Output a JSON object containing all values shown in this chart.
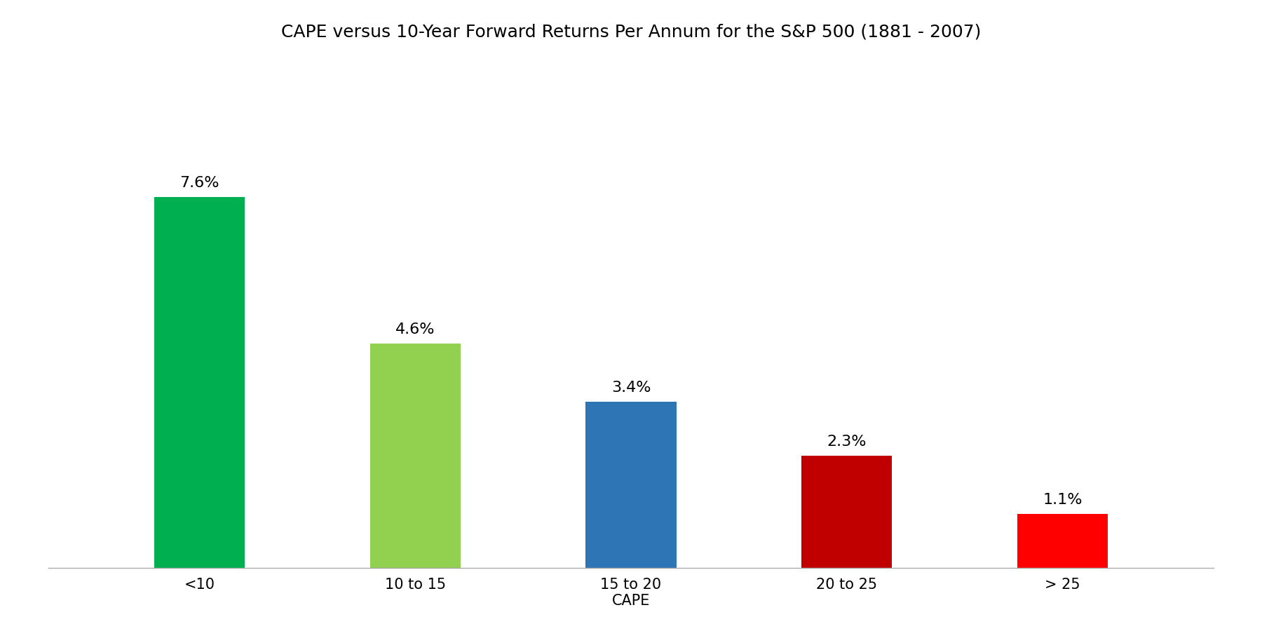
{
  "title": "CAPE versus 10-Year Forward Returns Per Annum for the S&P 500 (1881 - 2007)",
  "categories": [
    "<10",
    "10 to 15",
    "15 to 20\nCAPE",
    "20 to 25",
    "> 25"
  ],
  "values": [
    7.6,
    4.6,
    3.4,
    2.3,
    1.1
  ],
  "labels": [
    "7.6%",
    "4.6%",
    "3.4%",
    "2.3%",
    "1.1%"
  ],
  "bar_colors": [
    "#00b050",
    "#92d050",
    "#2e75b6",
    "#c00000",
    "#ff0000"
  ],
  "background_color": "#ffffff",
  "title_fontsize": 18,
  "label_fontsize": 16,
  "tick_fontsize": 15,
  "ylim": [
    0,
    10.5
  ],
  "bar_width": 0.42
}
